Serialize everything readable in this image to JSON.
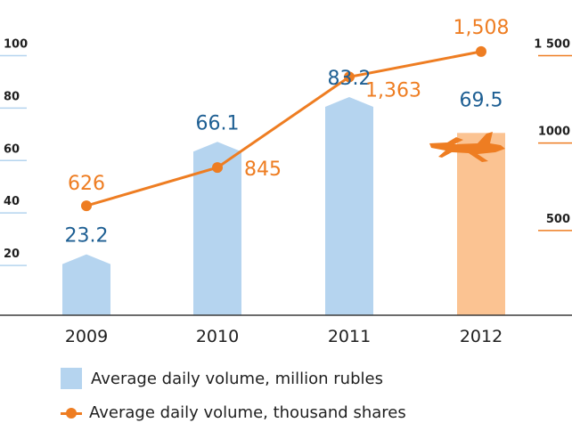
{
  "chart_data": {
    "type": "bar",
    "categories": [
      "2009",
      "2010",
      "2011",
      "2012"
    ],
    "series": [
      {
        "name": "Average daily volume, million rubles",
        "kind": "bar",
        "axis": "left",
        "values": [
          23.2,
          66.1,
          83.2,
          69.5
        ],
        "labels": [
          "23.2",
          "66.1",
          "83.2",
          "69.5"
        ],
        "highlight_index": 3
      },
      {
        "name": "Average daily volume, thousand shares",
        "kind": "line",
        "axis": "right",
        "values": [
          626,
          845,
          1363,
          1508
        ],
        "labels": [
          "626",
          "845",
          "1,363",
          "1,508"
        ]
      }
    ],
    "left_axis": {
      "ylim": [
        0,
        110
      ],
      "tick_values": [
        20,
        40,
        60,
        80,
        100
      ],
      "tick_labels": [
        "20",
        "40",
        "60",
        "80",
        "100"
      ]
    },
    "right_axis": {
      "ylim": [
        0,
        1650
      ],
      "tick_values": [
        500,
        1000,
        1500
      ],
      "tick_labels": [
        "500",
        "1000",
        "1 500"
      ]
    },
    "grid": false,
    "legend_position": "bottom-left",
    "colors": {
      "bar": "#b5d4ef",
      "bar_highlight": "#fbc392",
      "line": "#ee7d22",
      "bar_label": "#1e5f93",
      "axis": "#3c3c3c",
      "tick_dash_left": "#b5d4ef",
      "tick_dash_right": "#ee7d22"
    },
    "icon": "airplane-icon"
  }
}
